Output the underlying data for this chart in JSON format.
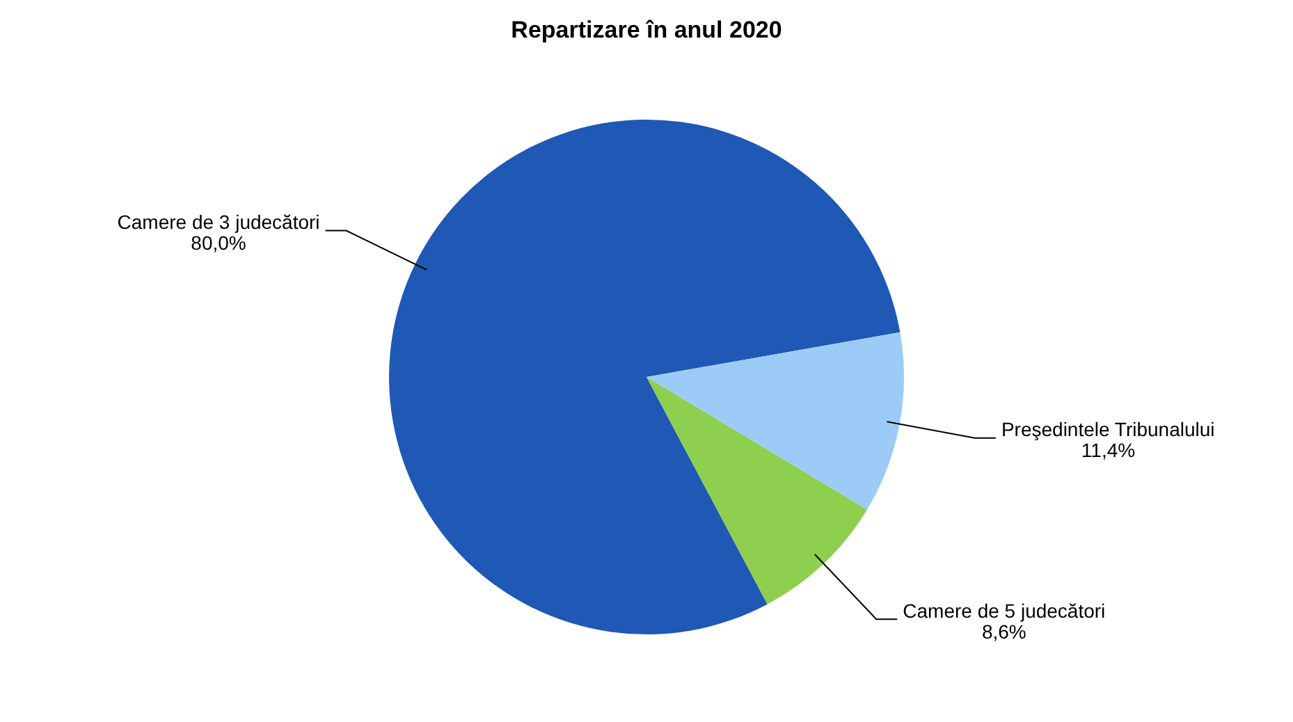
{
  "chart_data": {
    "type": "pie",
    "title": "Repartizare în anul 2020",
    "categories": [
      "Camere de 3 judecători",
      "Preşedintele Tribunalului",
      "Camere de 5 judecători"
    ],
    "values": [
      80.0,
      11.4,
      8.6
    ],
    "value_labels": [
      "80,0%",
      "11,4%",
      "8,6%"
    ],
    "colors": [
      "#1f58b5",
      "#9dcbf7",
      "#8ecf50"
    ],
    "legend": false
  }
}
